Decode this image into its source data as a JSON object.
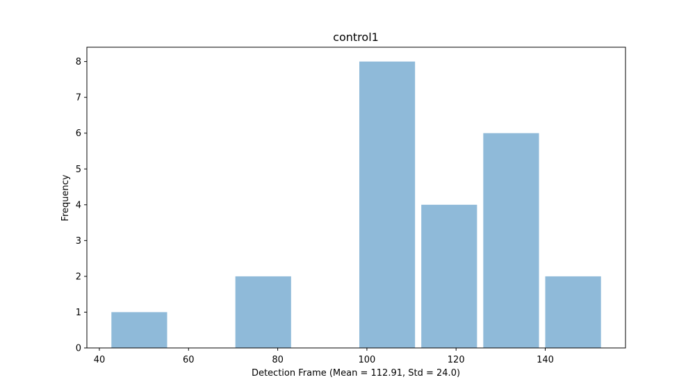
{
  "chart_data": {
    "type": "bar",
    "title": "control1",
    "xlabel": "Detection Frame (Mean = 112.91, Std = 24.0)",
    "ylabel": "Frequency",
    "bins": [
      {
        "start": 42.7,
        "end": 55.2,
        "count": 1
      },
      {
        "start": 56.6,
        "end": 69.1,
        "count": 0
      },
      {
        "start": 70.5,
        "end": 83.0,
        "count": 2
      },
      {
        "start": 84.4,
        "end": 96.9,
        "count": 0
      },
      {
        "start": 98.3,
        "end": 110.8,
        "count": 8
      },
      {
        "start": 112.2,
        "end": 124.7,
        "count": 4
      },
      {
        "start": 126.1,
        "end": 138.6,
        "count": 6
      },
      {
        "start": 140.0,
        "end": 152.5,
        "count": 2
      }
    ],
    "xlim": [
      37.2,
      158.0
    ],
    "ylim": [
      0,
      8.4
    ],
    "xticks": [
      40,
      60,
      80,
      100,
      120,
      140
    ],
    "yticks": [
      0,
      1,
      2,
      3,
      4,
      5,
      6,
      7,
      8
    ],
    "bar_color": "#8fbad9",
    "grid": false
  }
}
